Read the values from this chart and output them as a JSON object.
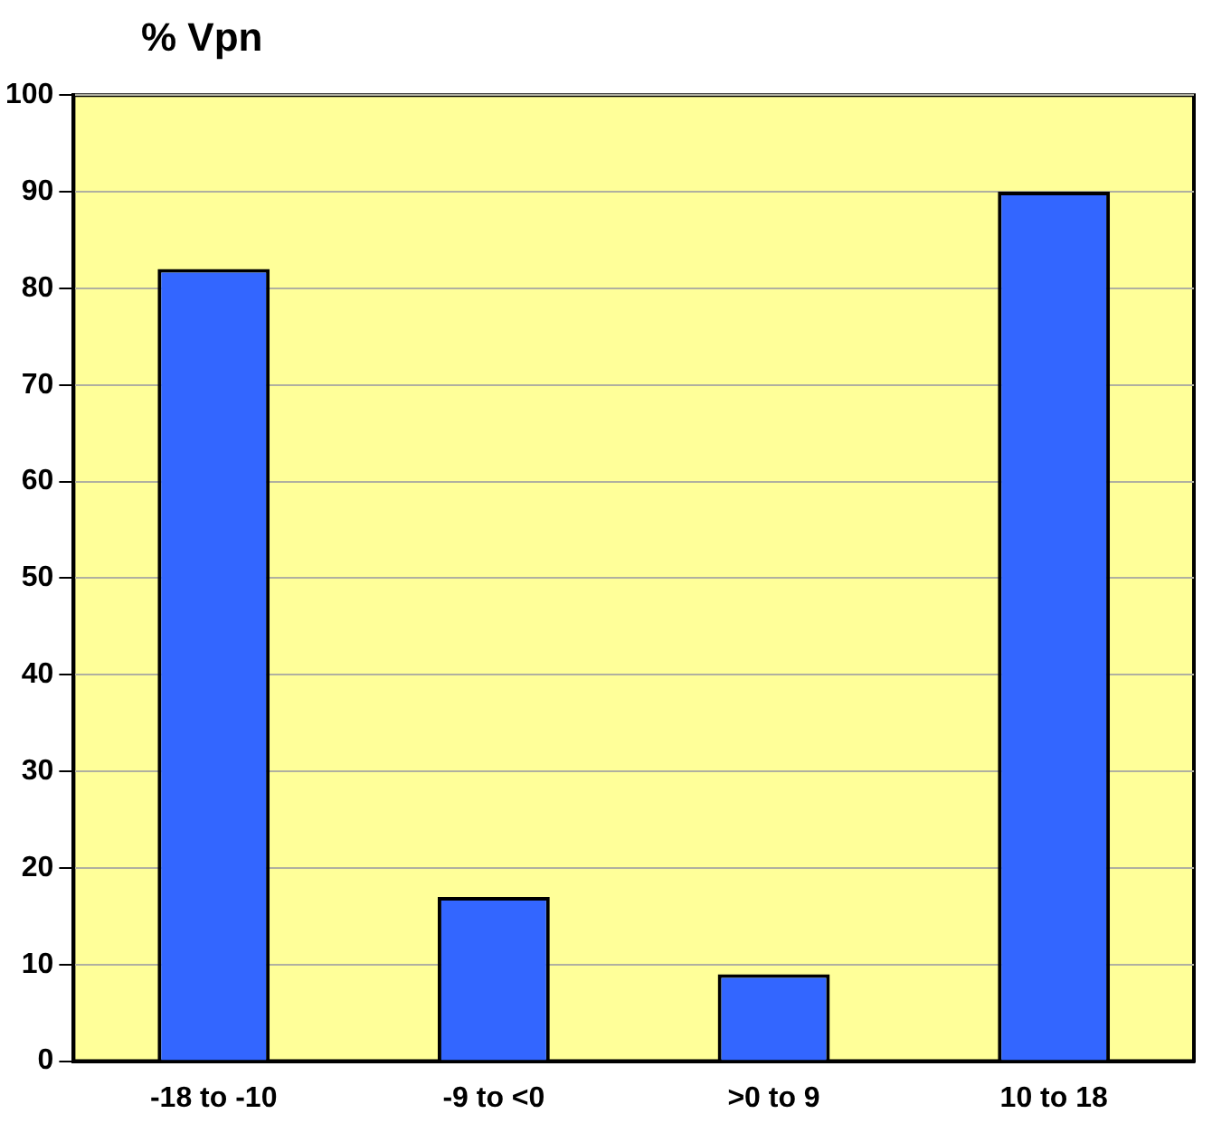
{
  "chart_data": {
    "type": "bar",
    "ylabel": "% Vpn",
    "categories": [
      "-18 to -10",
      "-9 to <0",
      ">0 to 9",
      "10 to 18"
    ],
    "values": [
      82,
      17,
      9,
      90
    ],
    "color": "#3366ff",
    "ylim": [
      0,
      100
    ],
    "yticks": [
      0,
      10,
      20,
      30,
      40,
      50,
      60,
      70,
      80,
      90,
      100
    ],
    "grid": "y"
  }
}
